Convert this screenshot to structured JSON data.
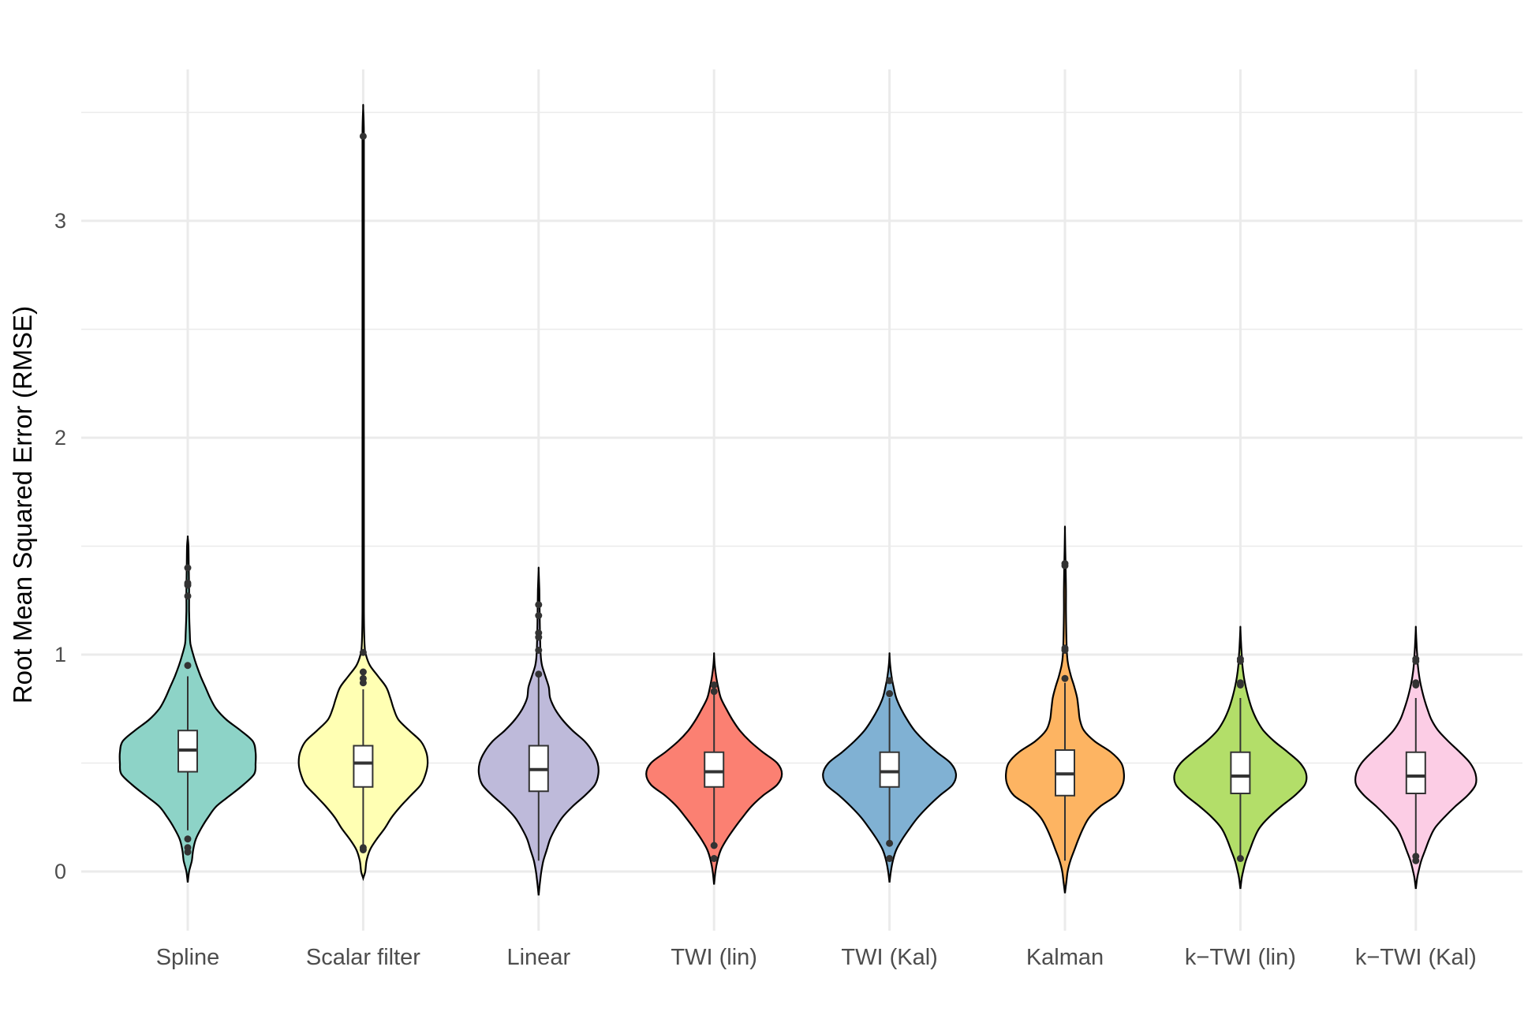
{
  "chart_data": {
    "type": "violin",
    "title": "",
    "xlabel": "",
    "ylabel": "Root Mean Squared Error (RMSE)",
    "ylim": [
      -0.28,
      3.75
    ],
    "yticks": [
      0,
      1,
      2,
      3
    ],
    "grid": true,
    "legend": "none",
    "categories": [
      "Spline",
      "Scalar filter",
      "Linear",
      "TWI (lin)",
      "TWI (Kal)",
      "Kalman",
      "k−TWI (lin)",
      "k−TWI (Kal)"
    ],
    "series": [
      {
        "color": "#8dd3c7",
        "min": -0.05,
        "max": 1.54,
        "box": {
          "q1": 0.46,
          "median": 0.56,
          "q3": 0.65,
          "whisker_low": 0.19,
          "whisker_high": 0.9
        },
        "density": [
          [
            -0.05,
            0.0
          ],
          [
            0.0,
            0.02
          ],
          [
            0.05,
            0.06
          ],
          [
            0.1,
            0.08
          ],
          [
            0.15,
            0.12
          ],
          [
            0.2,
            0.2
          ],
          [
            0.25,
            0.3
          ],
          [
            0.3,
            0.42
          ],
          [
            0.35,
            0.62
          ],
          [
            0.4,
            0.82
          ],
          [
            0.45,
            0.98
          ],
          [
            0.5,
            1.0
          ],
          [
            0.55,
            1.0
          ],
          [
            0.6,
            0.96
          ],
          [
            0.65,
            0.78
          ],
          [
            0.7,
            0.57
          ],
          [
            0.75,
            0.42
          ],
          [
            0.8,
            0.33
          ],
          [
            0.85,
            0.26
          ],
          [
            0.9,
            0.19
          ],
          [
            0.95,
            0.13
          ],
          [
            1.0,
            0.08
          ],
          [
            1.05,
            0.04
          ],
          [
            1.1,
            0.03
          ],
          [
            1.2,
            0.02
          ],
          [
            1.3,
            0.02
          ],
          [
            1.4,
            0.015
          ],
          [
            1.5,
            0.01
          ],
          [
            1.54,
            0.0
          ]
        ],
        "outliers": [
          0.95,
          1.27,
          1.32,
          1.33,
          1.4,
          0.15,
          0.11,
          0.09
        ]
      },
      {
        "color": "#ffffb3",
        "min": -0.03,
        "max": 3.52,
        "box": {
          "q1": 0.39,
          "median": 0.5,
          "q3": 0.58,
          "whisker_low": 0.12,
          "whisker_high": 0.84
        },
        "density": [
          [
            -0.03,
            0.0
          ],
          [
            0.0,
            0.03
          ],
          [
            0.05,
            0.05
          ],
          [
            0.1,
            0.1
          ],
          [
            0.15,
            0.2
          ],
          [
            0.2,
            0.32
          ],
          [
            0.25,
            0.42
          ],
          [
            0.3,
            0.55
          ],
          [
            0.35,
            0.7
          ],
          [
            0.4,
            0.85
          ],
          [
            0.45,
            0.92
          ],
          [
            0.5,
            0.95
          ],
          [
            0.55,
            0.93
          ],
          [
            0.6,
            0.85
          ],
          [
            0.65,
            0.68
          ],
          [
            0.7,
            0.52
          ],
          [
            0.75,
            0.45
          ],
          [
            0.8,
            0.4
          ],
          [
            0.85,
            0.34
          ],
          [
            0.9,
            0.22
          ],
          [
            0.95,
            0.1
          ],
          [
            1.0,
            0.04
          ],
          [
            1.05,
            0.02
          ],
          [
            1.2,
            0.01
          ],
          [
            1.5,
            0.01
          ],
          [
            2.0,
            0.01
          ],
          [
            2.5,
            0.01
          ],
          [
            3.0,
            0.01
          ],
          [
            3.4,
            0.01
          ],
          [
            3.52,
            0.0
          ]
        ],
        "outliers": [
          3.39,
          1.01,
          0.92,
          0.89,
          0.87,
          0.11,
          0.1
        ]
      },
      {
        "color": "#bebada",
        "min": -0.11,
        "max": 1.39,
        "box": {
          "q1": 0.37,
          "median": 0.47,
          "q3": 0.58,
          "whisker_low": 0.05,
          "whisker_high": 0.9
        },
        "density": [
          [
            -0.11,
            0.0
          ],
          [
            -0.05,
            0.02
          ],
          [
            0.0,
            0.04
          ],
          [
            0.05,
            0.07
          ],
          [
            0.1,
            0.12
          ],
          [
            0.15,
            0.17
          ],
          [
            0.2,
            0.25
          ],
          [
            0.25,
            0.35
          ],
          [
            0.3,
            0.5
          ],
          [
            0.35,
            0.68
          ],
          [
            0.4,
            0.83
          ],
          [
            0.45,
            0.88
          ],
          [
            0.5,
            0.87
          ],
          [
            0.55,
            0.8
          ],
          [
            0.6,
            0.68
          ],
          [
            0.65,
            0.5
          ],
          [
            0.7,
            0.35
          ],
          [
            0.75,
            0.24
          ],
          [
            0.8,
            0.17
          ],
          [
            0.85,
            0.15
          ],
          [
            0.9,
            0.1
          ],
          [
            0.95,
            0.05
          ],
          [
            1.0,
            0.03
          ],
          [
            1.1,
            0.02
          ],
          [
            1.2,
            0.015
          ],
          [
            1.3,
            0.01
          ],
          [
            1.39,
            0.0
          ]
        ],
        "outliers": [
          1.23,
          1.18,
          1.1,
          1.08,
          1.02,
          0.91
        ]
      },
      {
        "color": "#fb8072",
        "min": -0.06,
        "max": 1.0,
        "box": {
          "q1": 0.39,
          "median": 0.46,
          "q3": 0.55,
          "whisker_low": 0.13,
          "whisker_high": 0.82
        },
        "density": [
          [
            -0.06,
            0.0
          ],
          [
            0.0,
            0.02
          ],
          [
            0.05,
            0.05
          ],
          [
            0.1,
            0.1
          ],
          [
            0.15,
            0.19
          ],
          [
            0.2,
            0.3
          ],
          [
            0.25,
            0.42
          ],
          [
            0.3,
            0.55
          ],
          [
            0.35,
            0.72
          ],
          [
            0.4,
            0.93
          ],
          [
            0.45,
            1.0
          ],
          [
            0.5,
            0.93
          ],
          [
            0.55,
            0.72
          ],
          [
            0.6,
            0.53
          ],
          [
            0.65,
            0.38
          ],
          [
            0.7,
            0.27
          ],
          [
            0.75,
            0.18
          ],
          [
            0.8,
            0.1
          ],
          [
            0.85,
            0.06
          ],
          [
            0.9,
            0.03
          ],
          [
            0.95,
            0.01
          ],
          [
            1.0,
            0.0
          ]
        ],
        "outliers": [
          0.86,
          0.83,
          0.12,
          0.06
        ]
      },
      {
        "color": "#80b1d3",
        "min": -0.05,
        "max": 1.0,
        "box": {
          "q1": 0.39,
          "median": 0.46,
          "q3": 0.55,
          "whisker_low": 0.13,
          "whisker_high": 0.8
        },
        "density": [
          [
            -0.05,
            0.0
          ],
          [
            0.0,
            0.02
          ],
          [
            0.05,
            0.05
          ],
          [
            0.1,
            0.1
          ],
          [
            0.15,
            0.19
          ],
          [
            0.2,
            0.3
          ],
          [
            0.25,
            0.42
          ],
          [
            0.3,
            0.57
          ],
          [
            0.35,
            0.74
          ],
          [
            0.4,
            0.93
          ],
          [
            0.45,
            0.98
          ],
          [
            0.5,
            0.9
          ],
          [
            0.55,
            0.7
          ],
          [
            0.6,
            0.52
          ],
          [
            0.65,
            0.37
          ],
          [
            0.7,
            0.26
          ],
          [
            0.75,
            0.17
          ],
          [
            0.8,
            0.1
          ],
          [
            0.85,
            0.06
          ],
          [
            0.9,
            0.03
          ],
          [
            0.95,
            0.01
          ],
          [
            1.0,
            0.0
          ]
        ],
        "outliers": [
          0.88,
          0.82,
          0.13,
          0.06
        ]
      },
      {
        "color": "#fdb462",
        "min": -0.1,
        "max": 1.57,
        "box": {
          "q1": 0.35,
          "median": 0.45,
          "q3": 0.56,
          "whisker_low": 0.05,
          "whisker_high": 0.87
        },
        "density": [
          [
            -0.1,
            0.0
          ],
          [
            -0.05,
            0.02
          ],
          [
            0.0,
            0.04
          ],
          [
            0.05,
            0.08
          ],
          [
            0.1,
            0.14
          ],
          [
            0.15,
            0.2
          ],
          [
            0.2,
            0.27
          ],
          [
            0.25,
            0.36
          ],
          [
            0.3,
            0.52
          ],
          [
            0.35,
            0.75
          ],
          [
            0.4,
            0.85
          ],
          [
            0.45,
            0.87
          ],
          [
            0.5,
            0.83
          ],
          [
            0.55,
            0.68
          ],
          [
            0.6,
            0.44
          ],
          [
            0.65,
            0.28
          ],
          [
            0.7,
            0.22
          ],
          [
            0.75,
            0.2
          ],
          [
            0.8,
            0.18
          ],
          [
            0.85,
            0.14
          ],
          [
            0.9,
            0.09
          ],
          [
            0.95,
            0.05
          ],
          [
            1.0,
            0.03
          ],
          [
            1.1,
            0.02
          ],
          [
            1.2,
            0.015
          ],
          [
            1.3,
            0.015
          ],
          [
            1.4,
            0.01
          ],
          [
            1.57,
            0.0
          ]
        ],
        "outliers": [
          1.42,
          1.41,
          1.03,
          1.02,
          0.89
        ]
      },
      {
        "color": "#b3de69",
        "min": -0.08,
        "max": 1.12,
        "box": {
          "q1": 0.36,
          "median": 0.44,
          "q3": 0.55,
          "whisker_low": 0.07,
          "whisker_high": 0.8
        },
        "density": [
          [
            -0.08,
            0.0
          ],
          [
            -0.03,
            0.02
          ],
          [
            0.0,
            0.04
          ],
          [
            0.05,
            0.08
          ],
          [
            0.1,
            0.14
          ],
          [
            0.15,
            0.2
          ],
          [
            0.2,
            0.28
          ],
          [
            0.25,
            0.42
          ],
          [
            0.3,
            0.6
          ],
          [
            0.35,
            0.8
          ],
          [
            0.4,
            0.95
          ],
          [
            0.45,
            0.97
          ],
          [
            0.5,
            0.88
          ],
          [
            0.55,
            0.7
          ],
          [
            0.6,
            0.5
          ],
          [
            0.65,
            0.34
          ],
          [
            0.7,
            0.24
          ],
          [
            0.75,
            0.17
          ],
          [
            0.8,
            0.12
          ],
          [
            0.85,
            0.08
          ],
          [
            0.9,
            0.05
          ],
          [
            0.95,
            0.03
          ],
          [
            1.0,
            0.02
          ],
          [
            1.05,
            0.01
          ],
          [
            1.12,
            0.0
          ]
        ],
        "outliers": [
          0.98,
          0.97,
          0.87,
          0.86,
          0.06
        ]
      },
      {
        "color": "#fccde5",
        "min": -0.08,
        "max": 1.12,
        "box": {
          "q1": 0.36,
          "median": 0.44,
          "q3": 0.55,
          "whisker_low": 0.07,
          "whisker_high": 0.8
        },
        "density": [
          [
            -0.08,
            0.0
          ],
          [
            -0.03,
            0.02
          ],
          [
            0.0,
            0.04
          ],
          [
            0.05,
            0.08
          ],
          [
            0.1,
            0.14
          ],
          [
            0.15,
            0.2
          ],
          [
            0.2,
            0.28
          ],
          [
            0.25,
            0.42
          ],
          [
            0.3,
            0.58
          ],
          [
            0.35,
            0.76
          ],
          [
            0.4,
            0.88
          ],
          [
            0.45,
            0.88
          ],
          [
            0.5,
            0.8
          ],
          [
            0.55,
            0.65
          ],
          [
            0.6,
            0.48
          ],
          [
            0.65,
            0.33
          ],
          [
            0.7,
            0.23
          ],
          [
            0.75,
            0.17
          ],
          [
            0.8,
            0.12
          ],
          [
            0.85,
            0.08
          ],
          [
            0.9,
            0.05
          ],
          [
            0.95,
            0.03
          ],
          [
            1.0,
            0.02
          ],
          [
            1.05,
            0.01
          ],
          [
            1.12,
            0.0
          ]
        ],
        "outliers": [
          0.98,
          0.97,
          0.87,
          0.86,
          0.07,
          0.05
        ]
      }
    ]
  }
}
